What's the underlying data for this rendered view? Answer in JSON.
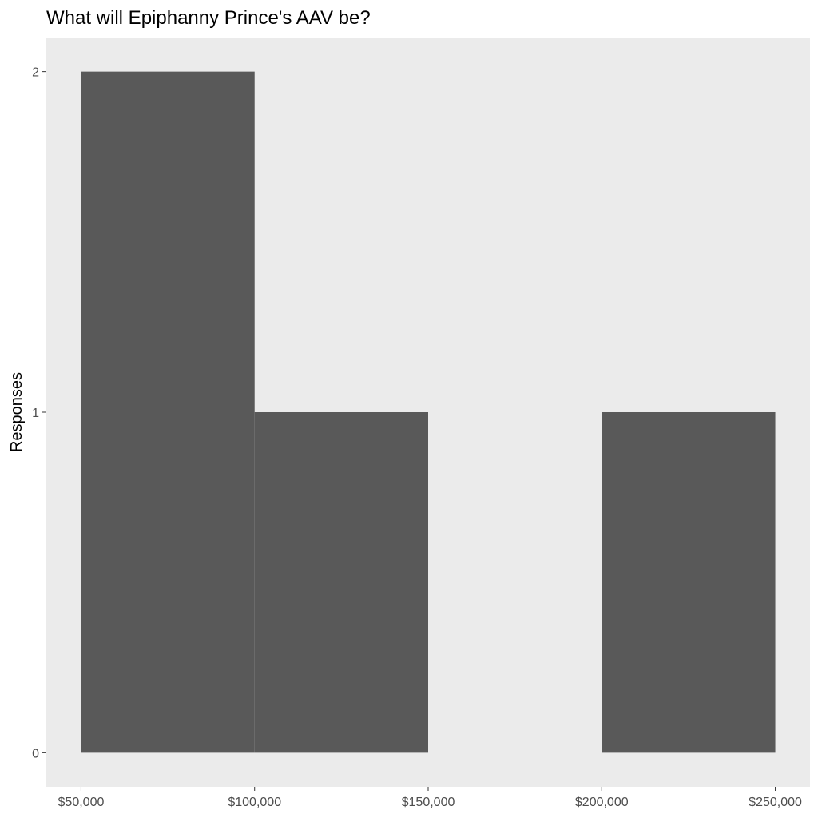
{
  "chart_data": {
    "type": "bar",
    "title": "What will Epiphanny Prince's AAV be?",
    "xlabel": "",
    "ylabel": "Responses",
    "bins": [
      {
        "x_start": 50000,
        "x_end": 100000,
        "count": 2
      },
      {
        "x_start": 100000,
        "x_end": 150000,
        "count": 1
      },
      {
        "x_start": 150000,
        "x_end": 200000,
        "count": 0
      },
      {
        "x_start": 200000,
        "x_end": 250000,
        "count": 1
      }
    ],
    "x_ticks": [
      {
        "value": 50000,
        "label": "$50,000"
      },
      {
        "value": 100000,
        "label": "$100,000"
      },
      {
        "value": 150000,
        "label": "$150,000"
      },
      {
        "value": 200000,
        "label": "$200,000"
      },
      {
        "value": 250000,
        "label": "$250,000"
      }
    ],
    "y_ticks": [
      {
        "value": 0,
        "label": "0"
      },
      {
        "value": 1,
        "label": "1"
      },
      {
        "value": 2,
        "label": "2"
      }
    ],
    "xlim": [
      40000,
      260000
    ],
    "ylim": [
      -0.1,
      2.1
    ],
    "grid": false,
    "colors": {
      "panel_background": "#ebebeb",
      "bar_fill": "#595959",
      "tick_mark": "#333333"
    }
  }
}
